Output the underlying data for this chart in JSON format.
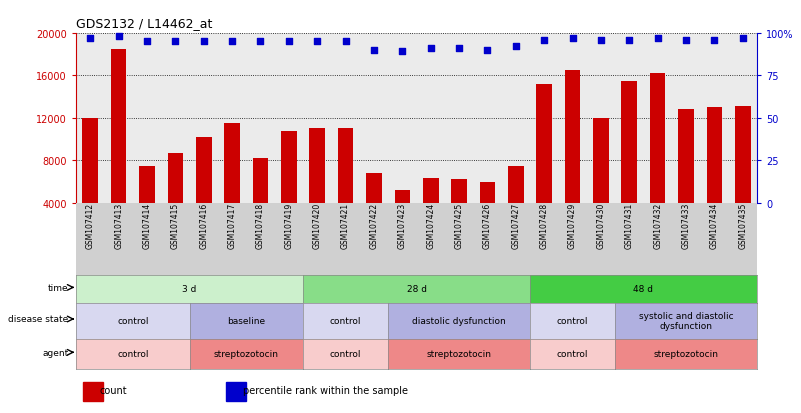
{
  "title": "GDS2132 / L14462_at",
  "samples": [
    "GSM107412",
    "GSM107413",
    "GSM107414",
    "GSM107415",
    "GSM107416",
    "GSM107417",
    "GSM107418",
    "GSM107419",
    "GSM107420",
    "GSM107421",
    "GSM107422",
    "GSM107423",
    "GSM107424",
    "GSM107425",
    "GSM107426",
    "GSM107427",
    "GSM107428",
    "GSM107429",
    "GSM107430",
    "GSM107431",
    "GSM107432",
    "GSM107433",
    "GSM107434",
    "GSM107435"
  ],
  "counts": [
    12000,
    18500,
    7500,
    8700,
    10200,
    11500,
    8200,
    10800,
    11000,
    11000,
    6800,
    5200,
    6300,
    6200,
    6000,
    7500,
    15200,
    16500,
    12000,
    15500,
    16200,
    12800,
    13000,
    13100
  ],
  "percentiles": [
    97,
    98,
    95,
    95,
    95,
    95,
    95,
    95,
    95,
    95,
    90,
    89,
    91,
    91,
    90,
    92,
    96,
    97,
    96,
    96,
    97,
    96,
    96,
    97
  ],
  "bar_color": "#cc0000",
  "dot_color": "#0000cc",
  "ylim_left": [
    4000,
    20000
  ],
  "ylim_right": [
    0,
    100
  ],
  "yticks_left": [
    4000,
    8000,
    12000,
    16000,
    20000
  ],
  "yticks_right": [
    0,
    25,
    50,
    75,
    100
  ],
  "chart_bg": "#ebebeb",
  "xtick_bg": "#d0d0d0",
  "time_row": {
    "label": "time",
    "segments": [
      {
        "text": "3 d",
        "start": 0,
        "end": 8,
        "color": "#ccf0cc"
      },
      {
        "text": "28 d",
        "start": 8,
        "end": 16,
        "color": "#88dd88"
      },
      {
        "text": "48 d",
        "start": 16,
        "end": 24,
        "color": "#44cc44"
      }
    ]
  },
  "disease_row": {
    "label": "disease state",
    "segments": [
      {
        "text": "control",
        "start": 0,
        "end": 4,
        "color": "#d8d8f0"
      },
      {
        "text": "baseline",
        "start": 4,
        "end": 8,
        "color": "#b0b0e0"
      },
      {
        "text": "control",
        "start": 8,
        "end": 11,
        "color": "#d8d8f0"
      },
      {
        "text": "diastolic dysfunction",
        "start": 11,
        "end": 16,
        "color": "#b0b0e0"
      },
      {
        "text": "control",
        "start": 16,
        "end": 19,
        "color": "#d8d8f0"
      },
      {
        "text": "systolic and diastolic\ndysfunction",
        "start": 19,
        "end": 24,
        "color": "#b0b0e0"
      }
    ]
  },
  "agent_row": {
    "label": "agent",
    "segments": [
      {
        "text": "control",
        "start": 0,
        "end": 4,
        "color": "#f8cccc"
      },
      {
        "text": "streptozotocin",
        "start": 4,
        "end": 8,
        "color": "#ee8888"
      },
      {
        "text": "control",
        "start": 8,
        "end": 11,
        "color": "#f8cccc"
      },
      {
        "text": "streptozotocin",
        "start": 11,
        "end": 16,
        "color": "#ee8888"
      },
      {
        "text": "control",
        "start": 16,
        "end": 19,
        "color": "#f8cccc"
      },
      {
        "text": "streptozotocin",
        "start": 19,
        "end": 24,
        "color": "#ee8888"
      }
    ]
  },
  "legend_items": [
    {
      "color": "#cc0000",
      "label": "count"
    },
    {
      "color": "#0000cc",
      "label": "percentile rank within the sample"
    }
  ]
}
